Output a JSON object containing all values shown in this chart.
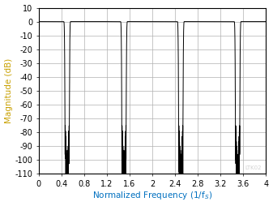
{
  "title": "",
  "xlabel": "Normalized Frequency (1/fₛ)",
  "ylabel": "Magnitude (dB)",
  "xlim": [
    0,
    4
  ],
  "ylim": [
    -110,
    10
  ],
  "yticks": [
    10,
    0,
    -10,
    -20,
    -30,
    -40,
    -50,
    -60,
    -70,
    -80,
    -90,
    -100,
    -110
  ],
  "xticks": [
    0,
    0.4,
    0.8,
    1.2,
    1.6,
    2.0,
    2.4,
    2.8,
    3.2,
    3.6,
    4.0
  ],
  "xtick_labels": [
    "0",
    "0.4",
    "0.8",
    "1.2",
    "1.6",
    "2",
    "2.4",
    "2.8",
    "3.2",
    "3.6",
    "4"
  ],
  "line_color": "#000000",
  "grid_color": "#b0b0b0",
  "axis_label_color": "#c8a000",
  "xlabel_color": "#0070c0",
  "background_color": "#ffffff",
  "watermark": "LTK02",
  "watermark_color": "#c0c0c0",
  "passband_end": 0.45,
  "transition_end": 0.6,
  "stopband_floor": -110,
  "passband_db": 0.0
}
